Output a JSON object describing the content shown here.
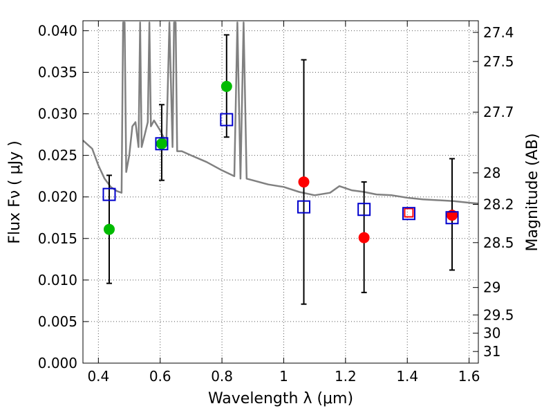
{
  "chart_data": {
    "type": "scatter",
    "xlabel": "Wavelength  λ (μm)",
    "ylabel": "Flux  Fν  ( μJy )",
    "y2label": "Magnitude (AB)",
    "xlim": [
      0.35,
      1.63
    ],
    "ylim": [
      0.0,
      0.0412
    ],
    "grid": true,
    "x_ticks": [
      0.4,
      0.6,
      0.8,
      1.0,
      1.2,
      1.4,
      1.6
    ],
    "x_tick_labels": [
      "0.4",
      "0.6",
      "0.8",
      "1",
      "1.2",
      "1.4",
      "1.6"
    ],
    "y_ticks": [
      0.0,
      0.005,
      0.01,
      0.015,
      0.02,
      0.025,
      0.03,
      0.035,
      0.04
    ],
    "y_tick_labels": [
      "0.000",
      "0.005",
      "0.010",
      "0.015",
      "0.020",
      "0.025",
      "0.030",
      "0.035",
      "0.040"
    ],
    "y2_ticks": [
      {
        "label": "27.4",
        "flux": 0.0398
      },
      {
        "label": "27.5",
        "flux": 0.0363
      },
      {
        "label": "27.7",
        "flux": 0.0302
      },
      {
        "label": "28",
        "flux": 0.0229
      },
      {
        "label": "28.2",
        "flux": 0.0191
      },
      {
        "label": "28.5",
        "flux": 0.0145
      },
      {
        "label": "29",
        "flux": 0.0091
      },
      {
        "label": "29.5",
        "flux": 0.0058
      },
      {
        "label": "30",
        "flux": 0.0036
      },
      {
        "label": "31",
        "flux": 0.0014
      }
    ],
    "series": [
      {
        "kind": "line",
        "color": "#808080",
        "points": [
          [
            0.35,
            0.0268
          ],
          [
            0.38,
            0.0258
          ],
          [
            0.4,
            0.0238
          ],
          [
            0.42,
            0.0222
          ],
          [
            0.44,
            0.0212
          ],
          [
            0.46,
            0.0207
          ],
          [
            0.475,
            0.0205
          ],
          [
            0.48,
            0.041
          ],
          [
            0.485,
            0.041
          ],
          [
            0.49,
            0.023
          ],
          [
            0.5,
            0.025
          ],
          [
            0.51,
            0.0285
          ],
          [
            0.52,
            0.029
          ],
          [
            0.53,
            0.026
          ],
          [
            0.535,
            0.041
          ],
          [
            0.54,
            0.026
          ],
          [
            0.55,
            0.0275
          ],
          [
            0.56,
            0.029
          ],
          [
            0.565,
            0.041
          ],
          [
            0.57,
            0.0285
          ],
          [
            0.58,
            0.0292
          ],
          [
            0.6,
            0.028
          ],
          [
            0.62,
            0.0265
          ],
          [
            0.63,
            0.041
          ],
          [
            0.64,
            0.026
          ],
          [
            0.645,
            0.041
          ],
          [
            0.65,
            0.041
          ],
          [
            0.655,
            0.0255
          ],
          [
            0.67,
            0.0255
          ],
          [
            0.7,
            0.025
          ],
          [
            0.75,
            0.0242
          ],
          [
            0.8,
            0.0232
          ],
          [
            0.84,
            0.0225
          ],
          [
            0.85,
            0.041
          ],
          [
            0.86,
            0.0222
          ],
          [
            0.87,
            0.041
          ],
          [
            0.88,
            0.0222
          ],
          [
            0.9,
            0.022
          ],
          [
            0.95,
            0.0215
          ],
          [
            1.0,
            0.0212
          ],
          [
            1.05,
            0.0206
          ],
          [
            1.1,
            0.0202
          ],
          [
            1.15,
            0.0205
          ],
          [
            1.18,
            0.0213
          ],
          [
            1.22,
            0.0208
          ],
          [
            1.26,
            0.0206
          ],
          [
            1.3,
            0.0203
          ],
          [
            1.35,
            0.0202
          ],
          [
            1.4,
            0.0199
          ],
          [
            1.45,
            0.0197
          ],
          [
            1.5,
            0.0196
          ],
          [
            1.55,
            0.0195
          ],
          [
            1.6,
            0.0193
          ],
          [
            1.63,
            0.0192
          ]
        ]
      },
      {
        "kind": "errorbar",
        "color": "#000000",
        "points": [
          {
            "x": 0.435,
            "lo": 0.0096,
            "hi": 0.0226
          },
          {
            "x": 0.605,
            "lo": 0.022,
            "hi": 0.0311
          },
          {
            "x": 0.815,
            "lo": 0.0272,
            "hi": 0.0395
          },
          {
            "x": 1.065,
            "lo": 0.0071,
            "hi": 0.0365
          },
          {
            "x": 1.26,
            "lo": 0.0085,
            "hi": 0.0218
          },
          {
            "x": 1.545,
            "lo": 0.0112,
            "hi": 0.0246
          }
        ]
      },
      {
        "kind": "points",
        "marker": "circle",
        "color": "#00bb00",
        "points": [
          [
            0.435,
            0.0161
          ],
          [
            0.605,
            0.0264
          ],
          [
            0.815,
            0.0333
          ]
        ]
      },
      {
        "kind": "points",
        "marker": "circle",
        "color": "#ff0000",
        "points": [
          [
            1.065,
            0.0218
          ],
          [
            1.26,
            0.0151
          ],
          [
            1.545,
            0.0178
          ]
        ]
      },
      {
        "kind": "points",
        "marker": "square",
        "color": "#ff0000",
        "points": [
          [
            1.405,
            0.0181
          ]
        ]
      },
      {
        "kind": "points",
        "marker": "square",
        "color": "#0000cc",
        "points": [
          [
            0.435,
            0.0203
          ],
          [
            0.605,
            0.0264
          ],
          [
            0.815,
            0.0293
          ],
          [
            1.065,
            0.0188
          ],
          [
            1.26,
            0.0185
          ],
          [
            1.405,
            0.018
          ],
          [
            1.545,
            0.0175
          ]
        ]
      }
    ]
  }
}
